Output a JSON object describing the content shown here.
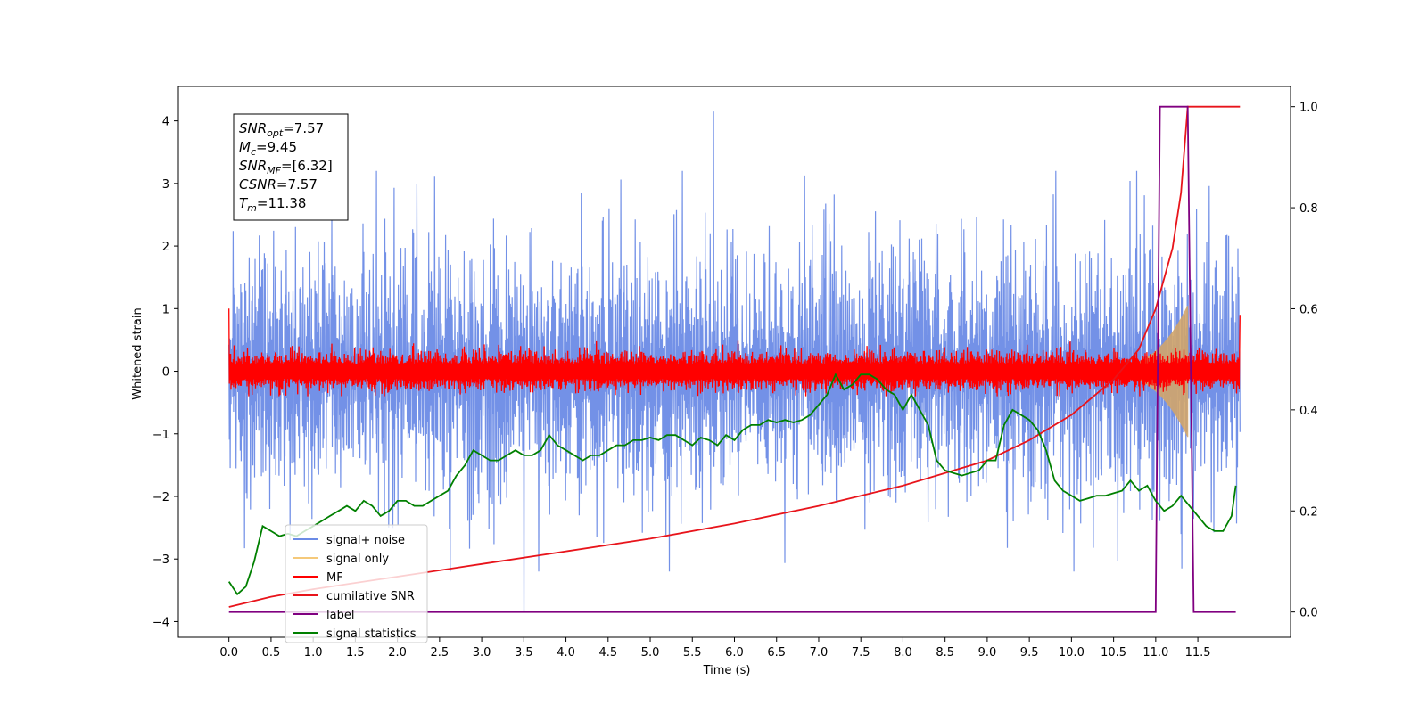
{
  "chart_data": {
    "type": "line",
    "xlabel": "Time (s)",
    "ylabel": "Whitened strain",
    "xlim": [
      -0.6,
      12.6
    ],
    "ylim_left": [
      -4.25,
      4.55
    ],
    "ylim_right": [
      -0.05,
      1.04
    ],
    "x_ticks": [
      "0.0",
      "0.5",
      "1.0",
      "1.5",
      "2.0",
      "2.5",
      "3.0",
      "3.5",
      "4.0",
      "4.5",
      "5.0",
      "5.5",
      "6.0",
      "6.5",
      "7.0",
      "7.5",
      "8.0",
      "8.5",
      "9.0",
      "9.5",
      "10.0",
      "10.5",
      "11.0",
      "11.5"
    ],
    "y_ticks_left": [
      "4",
      "3",
      "2",
      "1",
      "0",
      "−1",
      "−2",
      "−3",
      "−4"
    ],
    "y_ticks_right": [
      "1.0",
      "0.8",
      "0.6",
      "0.4",
      "0.2",
      "0.0"
    ],
    "annotation": [
      {
        "base": "SNR",
        "sub": "opt",
        "rest": "=7.57"
      },
      {
        "base": "M",
        "sub": "c",
        "rest": "=9.45"
      },
      {
        "base": "SNR",
        "sub": "MF",
        "rest": "=[6.32]"
      },
      {
        "base": "CSNR",
        "sub": "",
        "rest": "=7.57"
      },
      {
        "base": "T",
        "sub": "m",
        "rest": "=11.38"
      }
    ],
    "legend": {
      "placement": "lower-left",
      "entries": [
        {
          "label": "signal+ noise",
          "color": "#6b8be6"
        },
        {
          "label": "signal only",
          "color": "#f5c97a"
        },
        {
          "label": "MF",
          "color": "#ff0000"
        },
        {
          "label": "cumilative SNR",
          "color": "#e8141b"
        },
        {
          "label": "label",
          "color": "#800080"
        },
        {
          "label": "signal statistics",
          "color": "#008000"
        }
      ]
    },
    "series": [
      {
        "name": "signal+ noise",
        "axis": "left",
        "color": "#6b8be6",
        "x_range": [
          0.0,
          12.0
        ],
        "typical_amplitude": 2.1,
        "peak_max": 4.15,
        "peak_min": -3.85
      },
      {
        "name": "signal only",
        "axis": "left",
        "color": "#d2a56a",
        "chirp_end": 11.38,
        "max_amplitude": 1.0
      },
      {
        "name": "MF",
        "axis": "left",
        "color": "#ff0000",
        "x_range": [
          0.0,
          12.0
        ],
        "typical_amplitude": 0.3
      },
      {
        "name": "cumilative SNR",
        "axis": "right",
        "color": "#e8141b",
        "x": [
          0.0,
          0.5,
          1.0,
          2.0,
          3.0,
          4.0,
          5.0,
          6.0,
          7.0,
          8.0,
          9.0,
          9.5,
          10.0,
          10.5,
          10.8,
          11.0,
          11.2,
          11.3,
          11.38,
          12.0
        ],
        "values": [
          0.01,
          0.03,
          0.045,
          0.07,
          0.095,
          0.12,
          0.145,
          0.175,
          0.21,
          0.25,
          0.3,
          0.34,
          0.39,
          0.46,
          0.52,
          0.6,
          0.72,
          0.83,
          1.0,
          1.0
        ]
      },
      {
        "name": "label",
        "axis": "right",
        "color": "#800080",
        "x": [
          0.0,
          11.0,
          11.05,
          11.38,
          11.45,
          11.95
        ],
        "values": [
          0.0,
          0.0,
          1.0,
          1.0,
          0.0,
          0.0
        ]
      },
      {
        "name": "signal statistics",
        "axis": "right",
        "color": "#008000",
        "x": [
          0.0,
          0.1,
          0.2,
          0.3,
          0.4,
          0.5,
          0.6,
          0.7,
          0.8,
          0.9,
          1.0,
          1.1,
          1.2,
          1.3,
          1.4,
          1.5,
          1.6,
          1.7,
          1.8,
          1.9,
          2.0,
          2.1,
          2.2,
          2.3,
          2.4,
          2.5,
          2.6,
          2.7,
          2.8,
          2.9,
          3.0,
          3.1,
          3.2,
          3.3,
          3.4,
          3.5,
          3.6,
          3.7,
          3.8,
          3.9,
          4.0,
          4.1,
          4.2,
          4.3,
          4.4,
          4.5,
          4.6,
          4.7,
          4.8,
          4.9,
          5.0,
          5.1,
          5.2,
          5.3,
          5.4,
          5.5,
          5.6,
          5.7,
          5.8,
          5.9,
          6.0,
          6.1,
          6.2,
          6.3,
          6.4,
          6.5,
          6.6,
          6.7,
          6.8,
          6.9,
          7.0,
          7.1,
          7.2,
          7.3,
          7.4,
          7.5,
          7.6,
          7.7,
          7.8,
          7.9,
          8.0,
          8.1,
          8.2,
          8.3,
          8.4,
          8.5,
          8.6,
          8.7,
          8.8,
          8.9,
          9.0,
          9.1,
          9.2,
          9.3,
          9.4,
          9.5,
          9.6,
          9.7,
          9.8,
          9.9,
          10.0,
          10.1,
          10.2,
          10.3,
          10.4,
          10.5,
          10.6,
          10.7,
          10.8,
          10.9,
          11.0,
          11.1,
          11.2,
          11.3,
          11.4,
          11.5,
          11.6,
          11.7,
          11.8,
          11.9,
          11.95
        ],
        "values": [
          0.06,
          0.035,
          0.05,
          0.1,
          0.17,
          0.16,
          0.15,
          0.155,
          0.15,
          0.16,
          0.17,
          0.18,
          0.19,
          0.2,
          0.21,
          0.2,
          0.22,
          0.21,
          0.19,
          0.2,
          0.22,
          0.22,
          0.21,
          0.21,
          0.22,
          0.23,
          0.24,
          0.27,
          0.29,
          0.32,
          0.31,
          0.3,
          0.3,
          0.31,
          0.32,
          0.31,
          0.31,
          0.32,
          0.35,
          0.33,
          0.32,
          0.31,
          0.3,
          0.31,
          0.31,
          0.32,
          0.33,
          0.33,
          0.34,
          0.34,
          0.345,
          0.34,
          0.35,
          0.35,
          0.34,
          0.33,
          0.345,
          0.34,
          0.33,
          0.35,
          0.34,
          0.36,
          0.37,
          0.37,
          0.38,
          0.375,
          0.38,
          0.375,
          0.38,
          0.39,
          0.41,
          0.43,
          0.47,
          0.44,
          0.45,
          0.47,
          0.47,
          0.46,
          0.44,
          0.43,
          0.4,
          0.43,
          0.4,
          0.37,
          0.3,
          0.28,
          0.275,
          0.27,
          0.275,
          0.28,
          0.3,
          0.3,
          0.37,
          0.4,
          0.39,
          0.38,
          0.36,
          0.32,
          0.26,
          0.24,
          0.23,
          0.22,
          0.225,
          0.23,
          0.23,
          0.235,
          0.24,
          0.26,
          0.24,
          0.25,
          0.22,
          0.2,
          0.21,
          0.23,
          0.21,
          0.19,
          0.17,
          0.16,
          0.16,
          0.19,
          0.25
        ]
      }
    ]
  }
}
